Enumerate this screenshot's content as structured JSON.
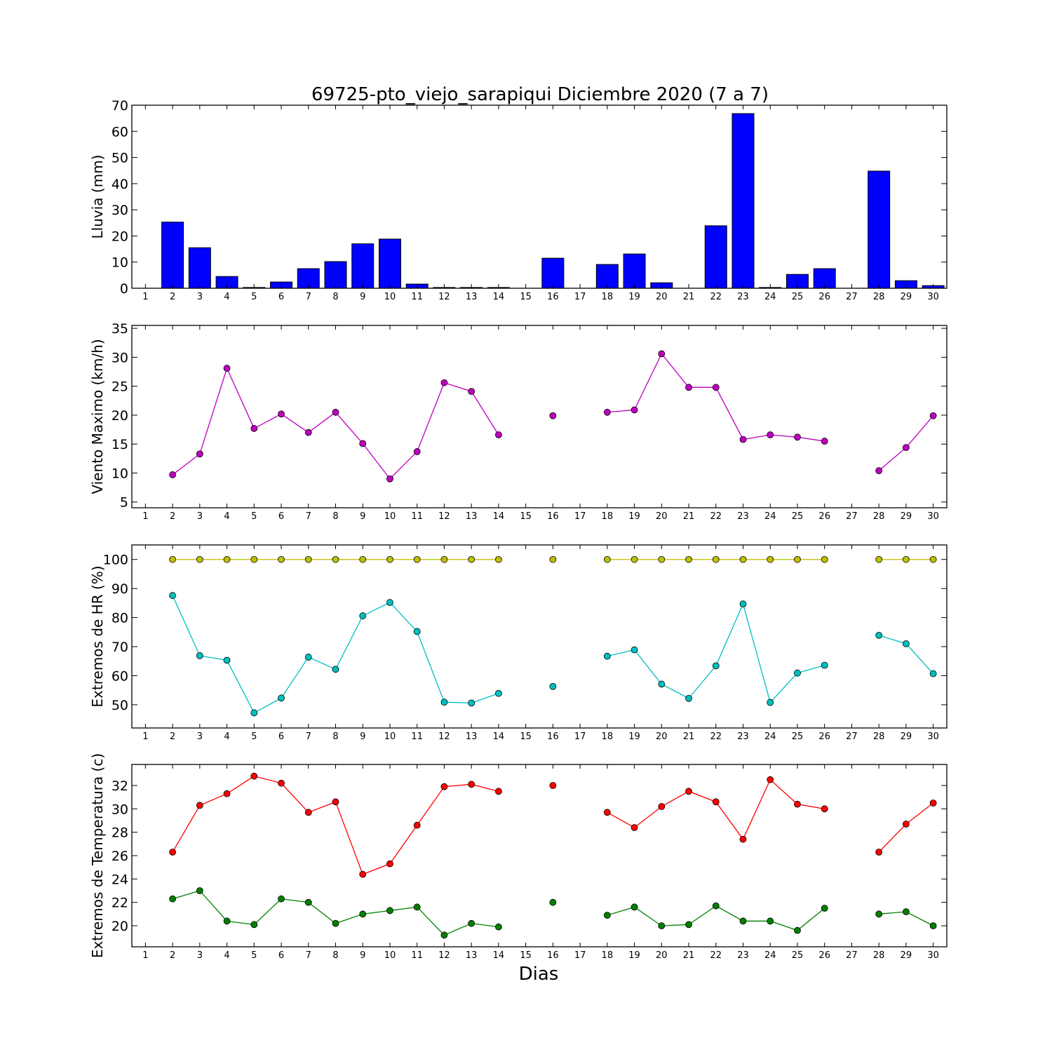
{
  "chart_data": {
    "type": "multi-panel",
    "title": "69725-pto_viejo_sarapiqui Diciembre 2020  (7 a 7)",
    "xlabel": "Dias",
    "days": [
      1,
      2,
      3,
      4,
      5,
      6,
      7,
      8,
      9,
      10,
      11,
      12,
      13,
      14,
      15,
      16,
      17,
      18,
      19,
      20,
      21,
      22,
      23,
      24,
      25,
      26,
      27,
      28,
      29,
      30
    ],
    "panels": [
      {
        "type": "bar",
        "ylabel": "Lluvia (mm)",
        "ylim": [
          0,
          70
        ],
        "yticks": [
          0,
          10,
          20,
          30,
          40,
          50,
          60,
          70
        ],
        "series": [
          {
            "color": "#0000ff",
            "values": [
              0,
              25.3,
              15.5,
              4.5,
              0.3,
              2.4,
              7.5,
              10.2,
              17.0,
              18.8,
              1.6,
              0.3,
              0.3,
              0.3,
              0,
              11.5,
              0,
              9.1,
              13.1,
              2.1,
              0,
              23.9,
              66.8,
              0.3,
              5.3,
              7.5,
              0,
              44.8,
              2.9,
              1.0
            ]
          }
        ]
      },
      {
        "type": "line",
        "ylabel": "Viento Maximo (km/h)",
        "ylim": [
          4,
          35.5
        ],
        "yticks": [
          5,
          10,
          15,
          20,
          25,
          30,
          35
        ],
        "series": [
          {
            "color": "#bf00bf",
            "values": [
              null,
              9.7,
              13.3,
              28.1,
              17.7,
              20.2,
              17.0,
              20.5,
              15.1,
              9.0,
              13.7,
              25.6,
              24.1,
              16.6,
              null,
              19.9,
              null,
              20.5,
              20.9,
              30.6,
              24.8,
              24.8,
              15.8,
              16.6,
              16.2,
              15.5,
              null,
              10.4,
              14.4,
              19.9
            ]
          }
        ]
      },
      {
        "type": "line",
        "ylabel": "Extremos de HR (%)",
        "ylim": [
          42,
          105
        ],
        "yticks": [
          50,
          60,
          70,
          80,
          90,
          100
        ],
        "series": [
          {
            "color": "#bfbf00",
            "values": [
              null,
              100,
              100,
              100,
              100,
              100,
              100,
              100,
              100,
              100,
              100,
              100,
              100,
              100,
              null,
              100,
              null,
              100,
              100,
              100,
              100,
              100,
              100,
              100,
              100,
              100,
              null,
              100,
              100,
              100
            ]
          },
          {
            "color": "#00bfbf",
            "values": [
              null,
              87.6,
              66.9,
              65.3,
              47.2,
              52.3,
              66.4,
              62.2,
              80.6,
              85.2,
              75.2,
              50.9,
              50.6,
              53.9,
              null,
              56.3,
              null,
              66.7,
              68.9,
              57.1,
              52.2,
              63.4,
              84.7,
              50.8,
              60.9,
              63.6,
              null,
              73.9,
              71.0,
              60.7
            ]
          }
        ]
      },
      {
        "type": "line",
        "ylabel": "Extremos de Temperatura (c)",
        "ylim": [
          18.2,
          33.8
        ],
        "yticks": [
          20,
          22,
          24,
          26,
          28,
          30,
          32
        ],
        "series": [
          {
            "color": "#ff0000",
            "values": [
              null,
              26.3,
              30.3,
              31.3,
              32.8,
              32.2,
              29.7,
              30.6,
              24.4,
              25.3,
              28.6,
              31.9,
              32.1,
              31.5,
              null,
              32.0,
              null,
              29.7,
              28.4,
              30.2,
              31.5,
              30.6,
              27.4,
              32.5,
              30.4,
              30.0,
              null,
              26.3,
              28.7,
              30.5
            ]
          },
          {
            "color": "#008000",
            "values": [
              null,
              22.3,
              23.0,
              20.4,
              20.1,
              22.3,
              22.0,
              20.2,
              21.0,
              21.3,
              21.6,
              19.2,
              20.2,
              19.9,
              null,
              22.0,
              null,
              20.9,
              21.6,
              20.0,
              20.1,
              21.7,
              20.4,
              20.4,
              19.6,
              21.5,
              null,
              21.0,
              21.2,
              20.0
            ]
          }
        ]
      }
    ]
  }
}
